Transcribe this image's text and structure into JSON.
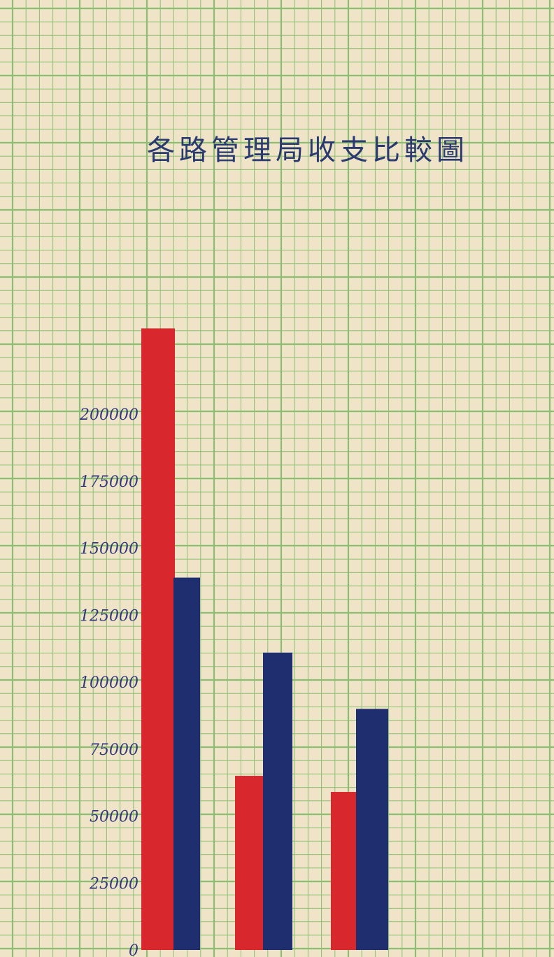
{
  "chart_data": {
    "type": "bar",
    "title": "各路管理局收支比較圖",
    "xlabel": "",
    "ylabel": "",
    "ylim": [
      0,
      240000
    ],
    "y_ticks": [
      0,
      25000,
      50000,
      75000,
      100000,
      125000,
      150000,
      175000,
      200000
    ],
    "y_tick_labels": [
      "0",
      "25000",
      "50000",
      "75000",
      "100000",
      "125000",
      "150000",
      "175000",
      "200000"
    ],
    "categories": [
      "",
      "",
      ""
    ],
    "series": [
      {
        "color": "#d8282e",
        "values": [
          232000,
          65000,
          59000
        ]
      },
      {
        "color": "#1f2e6e",
        "values": [
          139000,
          111000,
          90000
        ]
      }
    ],
    "grid": true,
    "grid_color": "#8dbd72",
    "paper_color": "#efe4c8",
    "legend": "none"
  }
}
